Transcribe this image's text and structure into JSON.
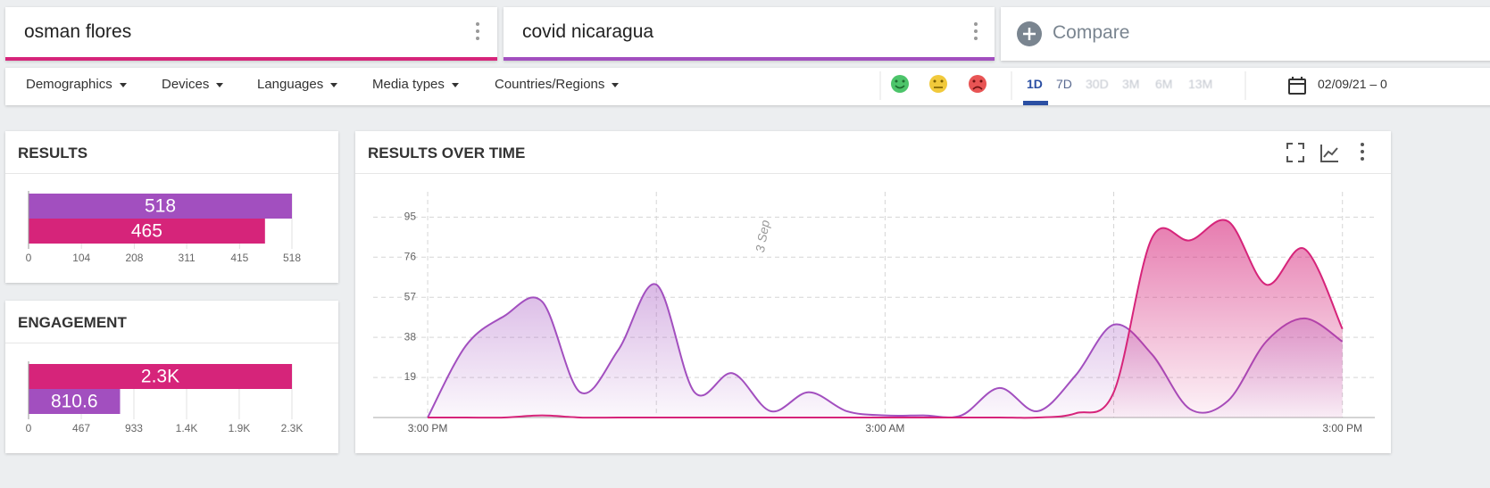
{
  "tabs": [
    {
      "label": "osman flores",
      "color": "#d6247a"
    },
    {
      "label": "covid nicaragua",
      "color": "#a24fbf"
    }
  ],
  "compare": "Compare",
  "filters": [
    "Demographics",
    "Devices",
    "Languages",
    "Media types",
    "Countries/Regions"
  ],
  "periods": [
    "1D",
    "7D",
    "30D",
    "3M",
    "6M",
    "13M"
  ],
  "active_period": 0,
  "date_range": "02/09/21 – 0",
  "chart_data": [
    {
      "type": "hbar",
      "title": "RESULTS",
      "values": [
        518,
        465
      ],
      "colors": [
        "#a24fbf",
        "#d6247a"
      ],
      "xlim": [
        0,
        518
      ],
      "xticks": [
        0,
        104,
        208,
        311,
        415,
        518
      ]
    },
    {
      "type": "hbar",
      "title": "ENGAGEMENT",
      "values": [
        2333,
        810.6
      ],
      "value_labels": [
        "2.3K",
        "810.6"
      ],
      "colors": [
        "#d6247a",
        "#a24fbf"
      ],
      "xlim": [
        0,
        2333
      ],
      "xticks": [
        0,
        467,
        933,
        {
          "value": 1400,
          "label": "1.4K"
        },
        {
          "value": 1866,
          "label": "1.9K"
        },
        {
          "value": 2333,
          "label": "2.3K"
        }
      ]
    },
    {
      "type": "area",
      "title": "RESULTS OVER TIME",
      "x": [
        0,
        1,
        2,
        3,
        4,
        5,
        6,
        7,
        8,
        9,
        10,
        11,
        12,
        13,
        14,
        15,
        16,
        17,
        18,
        19,
        20,
        21,
        22,
        23,
        24
      ],
      "series": [
        {
          "color": "#a24fbf",
          "values": [
            0,
            34,
            48,
            55,
            12,
            32,
            63,
            12,
            21,
            3,
            12,
            3,
            1,
            1,
            1,
            14,
            3,
            20,
            44,
            30,
            4,
            8,
            36,
            47,
            36
          ]
        },
        {
          "color": "#d6247a",
          "values": [
            0,
            0,
            0,
            1,
            0,
            0,
            0,
            0,
            0,
            0,
            0,
            0,
            0,
            0,
            0,
            0,
            0,
            2,
            12,
            85,
            84,
            93,
            63,
            80,
            42
          ]
        }
      ],
      "xlim": [
        -1.43,
        24.85
      ],
      "ylim": [
        0,
        107
      ],
      "xticks": [
        {
          "value": 0,
          "label": "3:00 PM"
        },
        {
          "value": 12,
          "label": "3:00 AM"
        },
        {
          "value": 24,
          "label": "3:00 PM"
        }
      ],
      "xgrid": [
        0,
        6,
        12,
        18,
        24
      ],
      "yticks": [
        19,
        38,
        57,
        76,
        95
      ],
      "annotations": [
        {
          "text": "3 Sep",
          "x": 9
        }
      ],
      "grid": true
    }
  ]
}
